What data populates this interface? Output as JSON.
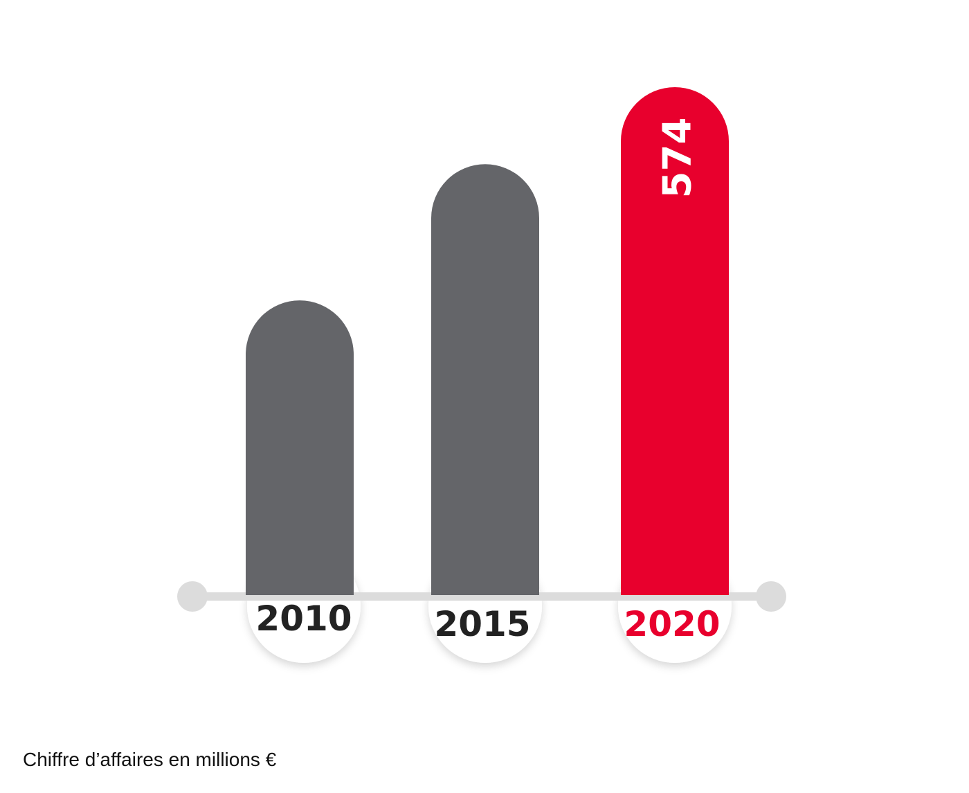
{
  "chart_data": {
    "type": "bar",
    "categories": [
      "2010",
      "2015",
      "2020"
    ],
    "values": [
      333,
      487,
      574
    ],
    "data_labels": [
      "",
      "",
      "574"
    ],
    "highlight_index": 2,
    "ylim": [
      0,
      574
    ],
    "colors": {
      "default_bar": "#646569",
      "highlight_bar": "#E8002D",
      "default_label": "#222222",
      "highlight_label": "#E8002D",
      "value_label": "#ffffff",
      "axis": "#dcdcdc",
      "badge": "#ffffff"
    }
  },
  "caption": "Chiffre d’affaires en millions €"
}
